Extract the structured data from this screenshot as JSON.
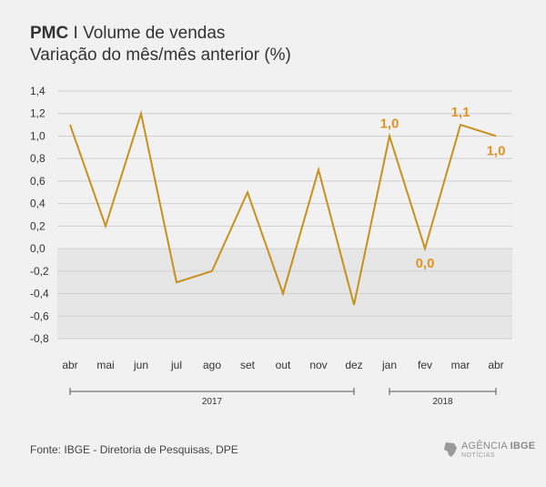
{
  "header": {
    "title_bold": "PMC",
    "title_sep": "I",
    "title_rest": "Volume de vendas",
    "subtitle": "Variação do mês/mês anterior (%)"
  },
  "chart_data": {
    "type": "line",
    "title": "PMC I Volume de vendas",
    "subtitle": "Variação do mês/mês anterior (%)",
    "categories": [
      "abr",
      "mai",
      "jun",
      "jul",
      "ago",
      "set",
      "out",
      "nov",
      "dez",
      "jan",
      "fev",
      "mar",
      "abr"
    ],
    "values": [
      1.1,
      0.2,
      1.2,
      -0.3,
      -0.2,
      0.5,
      -0.4,
      0.7,
      -0.5,
      1.0,
      0.0,
      1.1,
      1.0
    ],
    "y_ticks": [
      "1,4",
      "1,2",
      "1,0",
      "0,8",
      "0,6",
      "0,4",
      "0,2",
      "0,0",
      "-0,2",
      "-0,4",
      "-0,6",
      "-0,8"
    ],
    "ylim": [
      -0.8,
      1.4
    ],
    "year_groups": [
      {
        "label": "2017",
        "start_index": 0,
        "end_index": 8
      },
      {
        "label": "2018",
        "start_index": 9,
        "end_index": 12
      }
    ],
    "data_labels": [
      {
        "index": 9,
        "text": "1,0",
        "position": "above"
      },
      {
        "index": 10,
        "text": "0,0",
        "position": "below"
      },
      {
        "index": 11,
        "text": "1,1",
        "position": "above"
      },
      {
        "index": 12,
        "text": "1,0",
        "position": "below"
      }
    ],
    "line_color": "#c8901c",
    "label_color": "#e09322",
    "negative_band_color": "#e6e6e6"
  },
  "footer": {
    "source": "Fonte: IBGE - Diretoria de Pesquisas, DPE",
    "logo_line1_prefix": "AGÊNCIA",
    "logo_line1_brand": "IBGE",
    "logo_line2": "NOTÍCIAS"
  }
}
